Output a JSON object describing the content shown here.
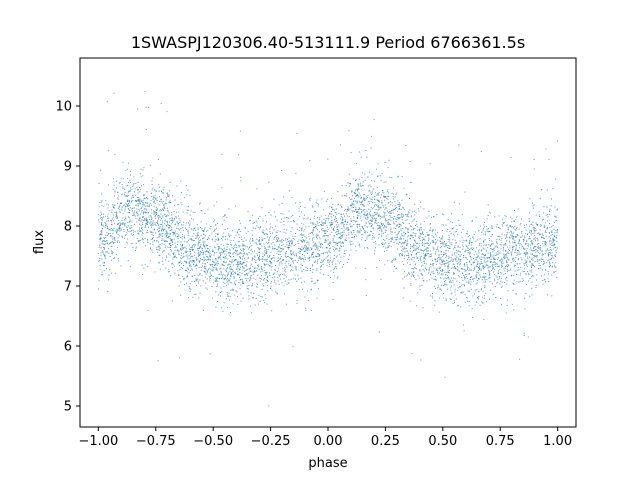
{
  "chart_data": {
    "type": "scatter",
    "title": "1SWASPJ120306.40-513111.9 Period 6766361.5s",
    "xlabel": "phase",
    "ylabel": "flux",
    "xlim": [
      -1.08,
      1.08
    ],
    "ylim": [
      4.65,
      10.8
    ],
    "xticks": [
      -1.0,
      -0.75,
      -0.5,
      -0.25,
      0.0,
      0.25,
      0.5,
      0.75,
      1.0
    ],
    "xtick_labels": [
      "−1.00",
      "−0.75",
      "−0.50",
      "−0.25",
      "0.00",
      "0.25",
      "0.50",
      "0.75",
      "1.00"
    ],
    "yticks": [
      5,
      6,
      7,
      8,
      9,
      10
    ],
    "ytick_labels": [
      "5",
      "6",
      "7",
      "8",
      "9",
      "10"
    ],
    "grid": false,
    "marker_color": "#1f77b4",
    "series": [
      {
        "name": "",
        "description_profile": {
          "phase_range": [
            -1.0,
            1.0
          ],
          "period_in_phase": 1.0,
          "profile_phase": [
            0.0,
            0.05,
            0.1,
            0.15,
            0.2,
            0.25,
            0.3,
            0.35,
            0.4,
            0.45,
            0.5,
            0.55,
            0.6,
            0.65,
            0.7,
            0.75,
            0.8,
            0.85,
            0.9,
            0.95,
            1.0
          ],
          "profile_flux": [
            7.8,
            7.85,
            8.25,
            8.3,
            8.2,
            8.1,
            8.0,
            7.7,
            7.6,
            7.55,
            7.45,
            7.35,
            7.4,
            7.4,
            7.45,
            7.5,
            7.55,
            7.6,
            7.65,
            7.7,
            7.8
          ],
          "scatter_std": 0.45
        }
      }
    ]
  }
}
